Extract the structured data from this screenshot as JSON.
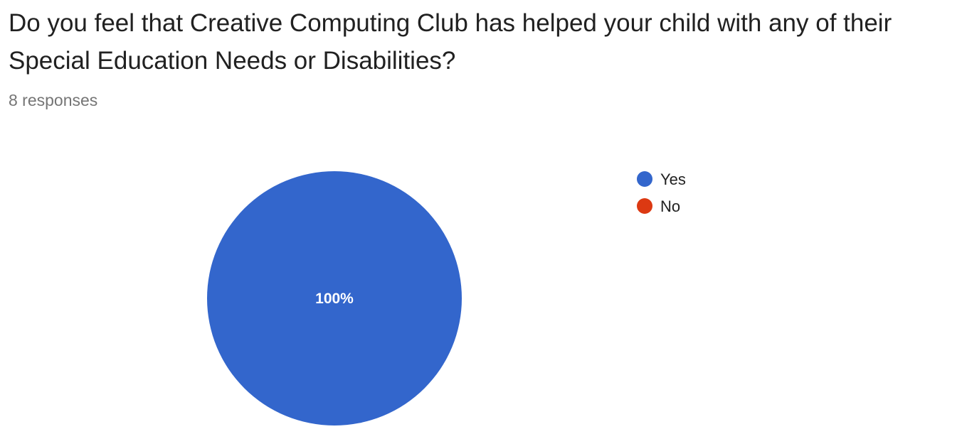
{
  "question": {
    "title": "Do you feel that Creative Computing Club has helped your child with any of their Special Education Needs or Disabilities?",
    "responses_label": "8 responses"
  },
  "chart_data": {
    "type": "pie",
    "categories": [
      "Yes",
      "No"
    ],
    "values": [
      100,
      0
    ],
    "value_labels": [
      "100%",
      ""
    ],
    "colors": [
      "#3366cc",
      "#dc3912"
    ],
    "legend_position": "right"
  }
}
